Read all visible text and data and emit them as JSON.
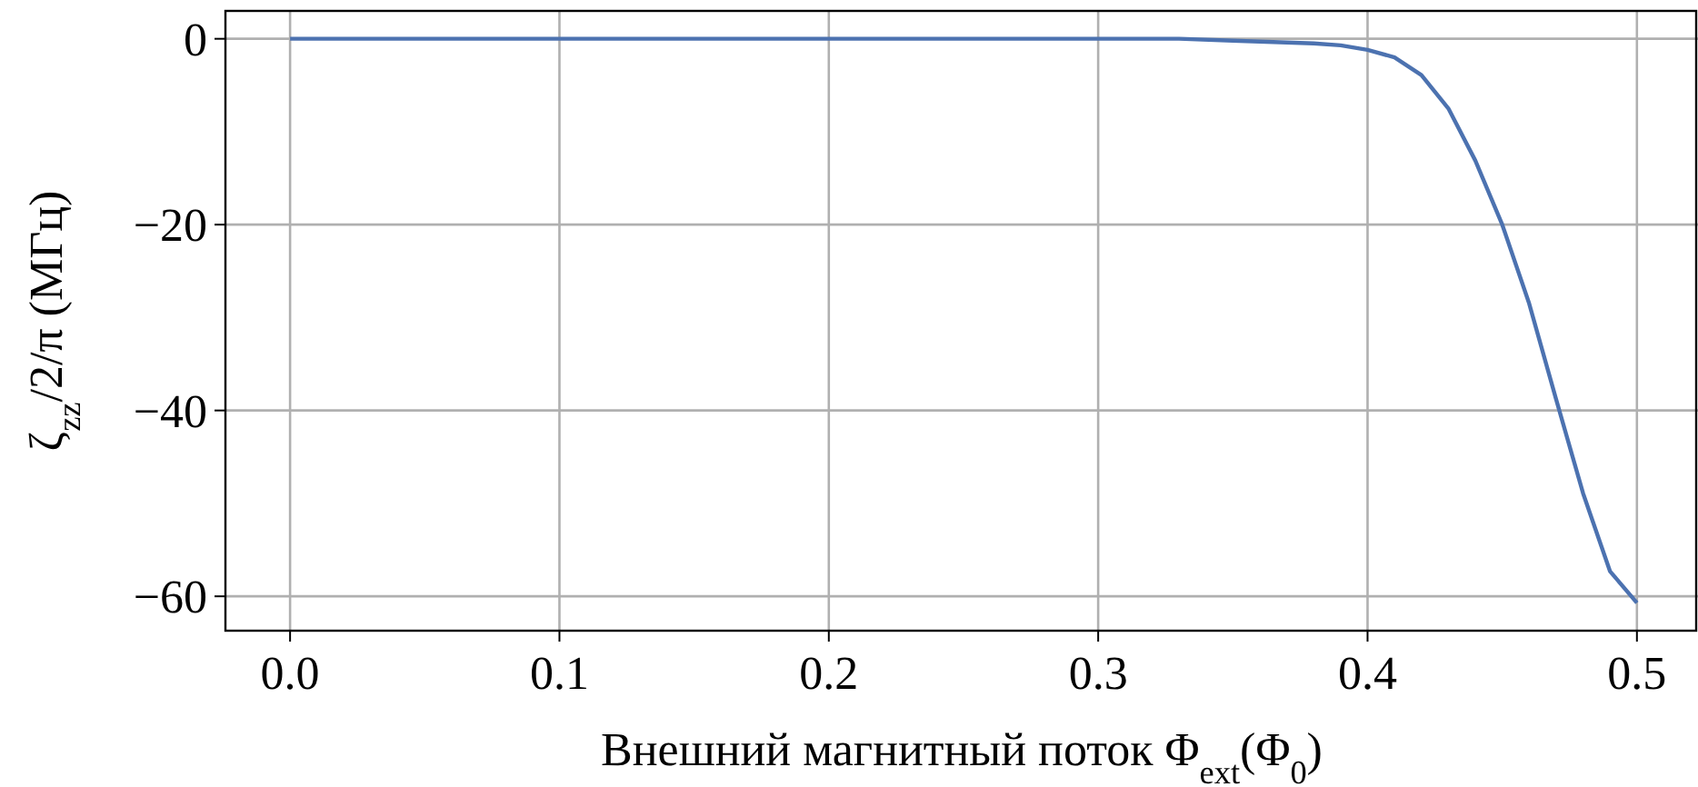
{
  "chart_data": {
    "type": "line",
    "xlabel": "Внешний магнитный поток Φ$_{ext}$(Φ$_{0}$)",
    "ylabel": "ζ$_{zz}$/2/π (МГц)",
    "x": [
      0,
      0.05,
      0.1,
      0.15,
      0.2,
      0.25,
      0.3,
      0.33,
      0.35,
      0.37,
      0.38,
      0.39,
      0.4,
      0.41,
      0.42,
      0.43,
      0.44,
      0.45,
      0.46,
      0.47,
      0.48,
      0.49,
      0.5
    ],
    "series": [
      {
        "color": "#4c72b0",
        "values": [
          0,
          0,
          0,
          0,
          0,
          0,
          0,
          0,
          -0.2,
          -0.4,
          -0.5,
          -0.7,
          -1.2,
          -2,
          -3.9,
          -7.5,
          -13.1,
          -20,
          -28.5,
          -38.8,
          -48.9,
          -57.3,
          -60.7
        ]
      }
    ],
    "xlim": [
      -0.024,
      0.522
    ],
    "ylim": [
      -63.7,
      3
    ],
    "xticks": [
      {
        "value": 0,
        "label": "0.0"
      },
      0.1,
      0.2,
      0.3,
      0.4,
      0.5
    ],
    "yticks": [
      -60,
      -40,
      -20,
      0
    ],
    "grid": true,
    "marker": "none",
    "line_style": "solid"
  }
}
